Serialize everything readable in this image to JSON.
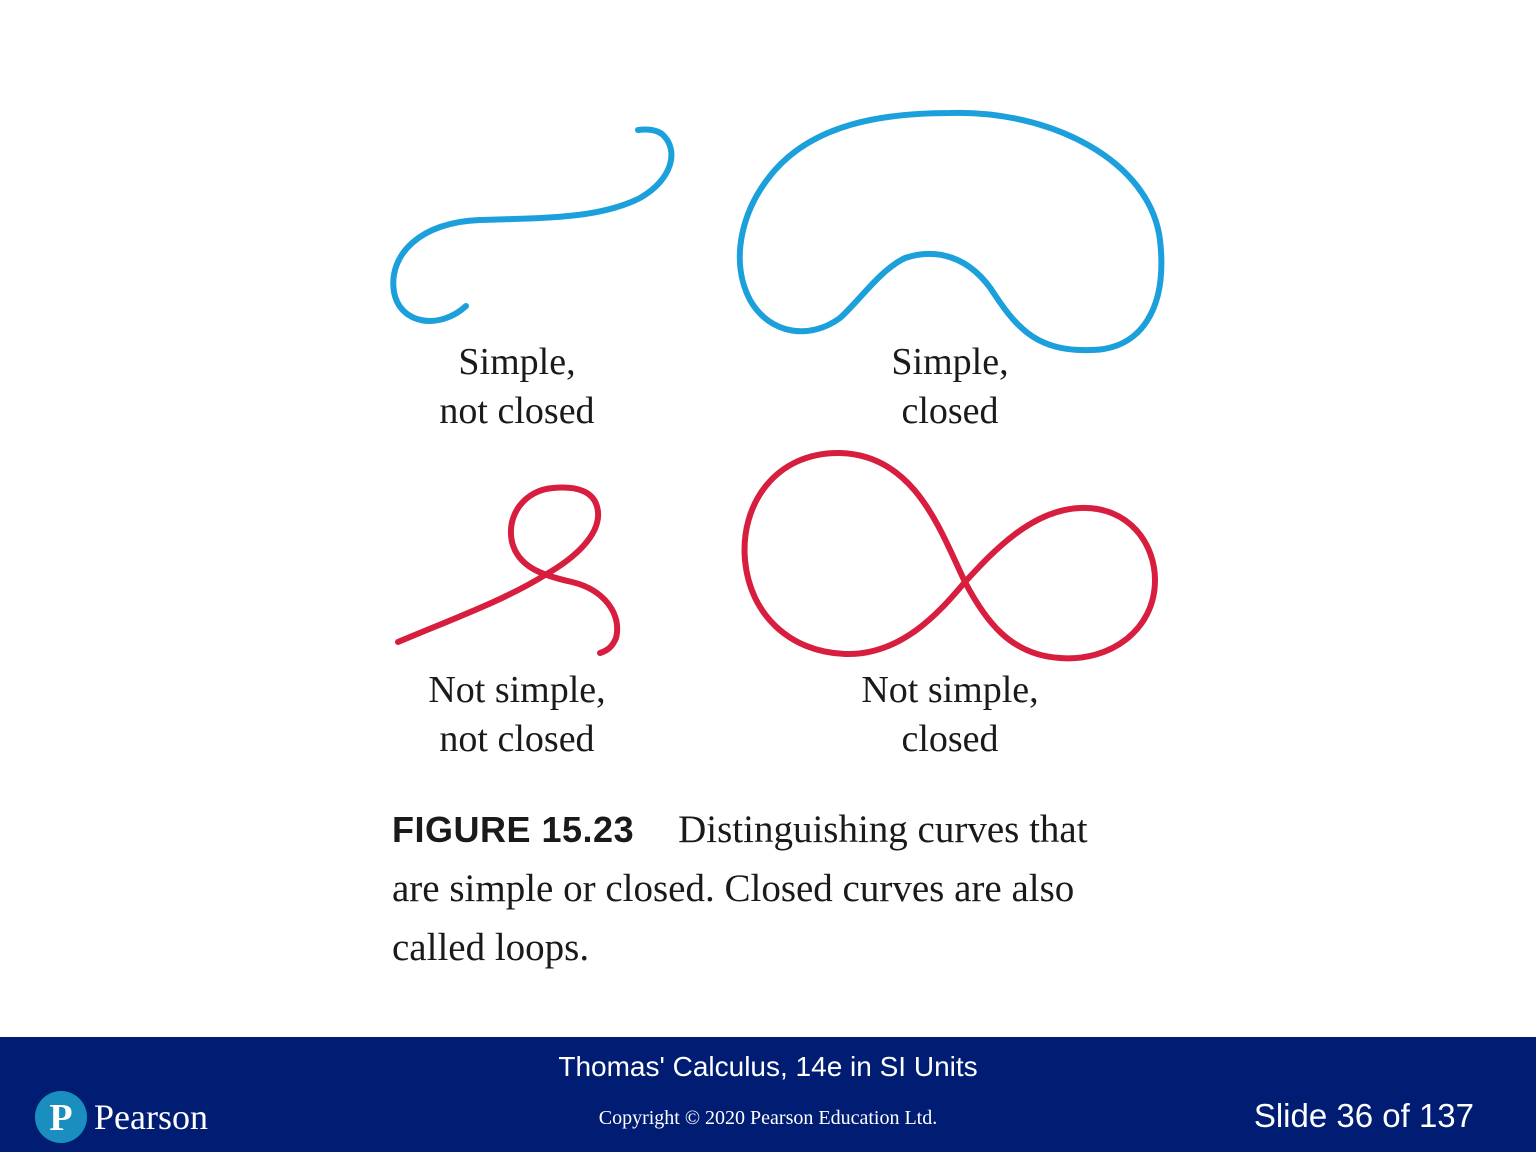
{
  "figure": {
    "panels": [
      {
        "label_line1": "Simple,",
        "label_line2": "not closed",
        "color": "#1ba0dc"
      },
      {
        "label_line1": "Simple,",
        "label_line2": "closed",
        "color": "#1ba0dc"
      },
      {
        "label_line1": "Not simple,",
        "label_line2": "not closed",
        "color": "#d81e3f"
      },
      {
        "label_line1": "Not simple,",
        "label_line2": "closed",
        "color": "#d81e3f"
      }
    ],
    "caption": {
      "number": "FIGURE 15.23",
      "text": "Distinguishing curves that are simple or closed. Closed curves are also called loops."
    }
  },
  "footer": {
    "book_title": "Thomas' Calculus, 14e in SI Units",
    "copyright": "Copyright © 2020 Pearson Education Ltd.",
    "slide_number": "Slide 36 of 137",
    "brand": "Pearson",
    "background_color": "#001d73",
    "logo_color": "#1a8fbf"
  }
}
